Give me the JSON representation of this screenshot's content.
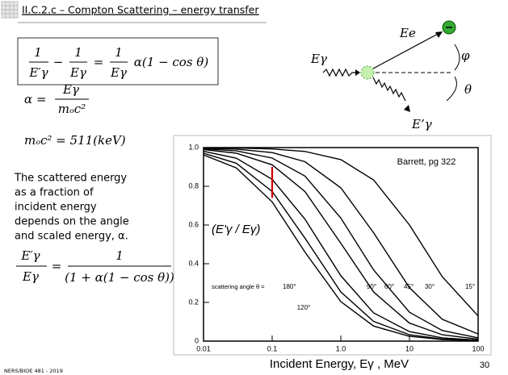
{
  "header": {
    "title": "II.C.2.c – Compton Scattering – energy transfer"
  },
  "equations": {
    "eq1": {
      "f1": [
        "1",
        "E′γ"
      ],
      "minus": "−",
      "f2": [
        "1",
        "Eγ"
      ],
      "eq": "=",
      "f3": [
        "1",
        "Eγ"
      ],
      "tail": "α(1 − cos θ)"
    },
    "eq2": {
      "lhs": "α =",
      "frac": [
        "Eγ",
        "mₒc²"
      ]
    },
    "eq3": "mₒc² = 511(keV)",
    "eq4": {
      "frac1": [
        "E′γ",
        "Eγ"
      ],
      "eq": "=",
      "frac2": [
        "1",
        "(1 + α(1 − cos θ))"
      ]
    }
  },
  "body_text": [
    "The scattered energy",
    "as a fraction of",
    "incident energy",
    "depends on the angle",
    "and scaled energy, α."
  ],
  "diagram": {
    "incident": "Eγ",
    "electron": "Ee",
    "phi": "φ",
    "theta": "θ",
    "scattered": "E’γ"
  },
  "footer": {
    "course": "NERS/BIOE 481 - 2019",
    "page": "30"
  },
  "chart_data": {
    "type": "line",
    "x_label": "Incident Energy, Eγ , MeV",
    "y_label": "(E'γ / Eγ)",
    "source": "Barrett, pg 322",
    "angle_prefix": "scattering angle θ =",
    "log_x": true,
    "grid": false,
    "x": [
      0.01,
      0.03,
      0.1,
      0.3,
      1,
      3,
      10,
      30,
      100
    ],
    "xlim": [
      0.01,
      100
    ],
    "xticks": [
      0.01,
      0.1,
      {
        "value": 1,
        "label": "1.0"
      },
      10,
      100
    ],
    "ylim": [
      0,
      1
    ],
    "yticks": [
      0,
      0.2,
      0.4,
      0.6,
      0.8,
      {
        "value": 1,
        "label": "1.0"
      }
    ],
    "series": [
      {
        "name": "180°",
        "color": "#000000",
        "values": [
          0.962,
          0.895,
          0.719,
          0.46,
          0.204,
          0.078,
          0.025,
          0.008,
          0.003
        ]
      },
      {
        "name": "120°",
        "color": "#000000",
        "values": [
          0.971,
          0.919,
          0.773,
          0.532,
          0.254,
          0.102,
          0.033,
          0.011,
          0.003
        ]
      },
      {
        "name": "90°",
        "color": "#000000",
        "values": [
          0.981,
          0.945,
          0.836,
          0.63,
          0.338,
          0.146,
          0.049,
          0.017,
          0.005
        ]
      },
      {
        "name": "60°",
        "color": "#000000",
        "values": [
          0.99,
          0.971,
          0.911,
          0.773,
          0.506,
          0.254,
          0.093,
          0.033,
          0.01
        ]
      },
      {
        "name": "45°",
        "color": "#000000",
        "values": [
          0.994,
          0.983,
          0.946,
          0.853,
          0.636,
          0.368,
          0.149,
          0.055,
          0.017
        ]
      },
      {
        "name": "30°",
        "color": "#000000",
        "values": [
          0.997,
          0.992,
          0.974,
          0.927,
          0.792,
          0.56,
          0.276,
          0.113,
          0.037
        ]
      },
      {
        "name": "15°",
        "color": "#000000",
        "values": [
          0.999,
          0.998,
          0.993,
          0.98,
          0.938,
          0.833,
          0.6,
          0.333,
          0.13
        ]
      }
    ],
    "highlight": {
      "x": 0.1,
      "y": [
        0.74,
        0.9
      ],
      "color": "#d00000"
    }
  }
}
